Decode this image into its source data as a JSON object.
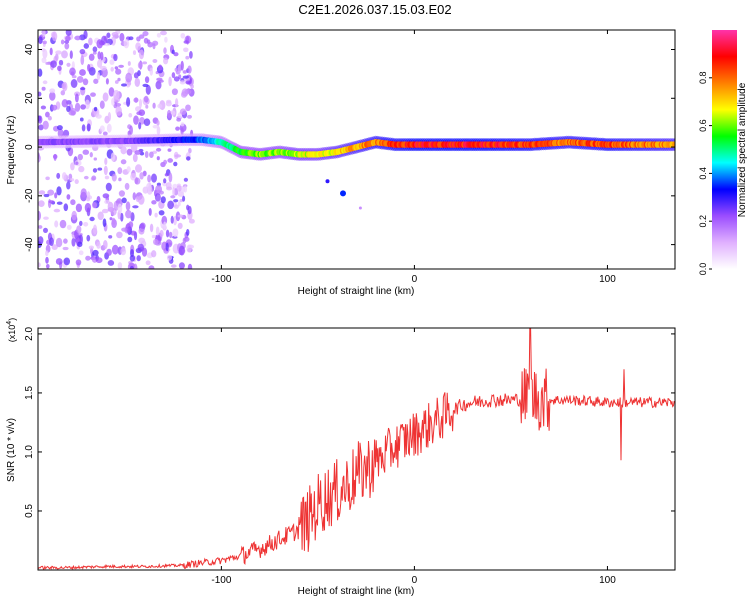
{
  "title": "C2E1.2026.037.15.03.E02",
  "chart_data": [
    {
      "type": "heatmap",
      "xlabel": "Height of straight line (km)",
      "ylabel": "Frequency (Hz)",
      "xlim": [
        -195,
        135
      ],
      "ylim": [
        -50,
        48
      ],
      "xticks": [
        -100,
        0,
        100
      ],
      "xtick_labels": [
        "-100",
        "0",
        "100"
      ],
      "yticks": [
        -40,
        -20,
        0,
        20,
        40
      ],
      "ytick_labels": [
        "-40",
        "-20",
        "0",
        "20",
        "40"
      ],
      "colorbar": {
        "label": "Normalized spectral amplitude",
        "range": [
          0,
          1
        ],
        "ticks": [
          0.0,
          0.2,
          0.4,
          0.6,
          0.8
        ],
        "tick_labels": [
          "0.0",
          "0.2",
          "0.4",
          "0.6",
          "0.8"
        ],
        "colors": [
          "#ffffff",
          "#e0b0ff",
          "#9b4dff",
          "#0000ff",
          "#00ffff",
          "#00ff00",
          "#ffff00",
          "#ff7f00",
          "#ff0000",
          "#ff33aa"
        ]
      },
      "ridge": {
        "x": [
          -195,
          -150,
          -120,
          -110,
          -100,
          -90,
          -80,
          -70,
          -60,
          -50,
          -40,
          -30,
          -20,
          -10,
          0,
          10,
          20,
          40,
          60,
          80,
          100,
          120,
          135
        ],
        "y": [
          2,
          2.5,
          3,
          3,
          2,
          -2,
          -3,
          -2,
          -3,
          -3,
          -2,
          0,
          2,
          1,
          1,
          1,
          1,
          1,
          1,
          2,
          1,
          1,
          1
        ],
        "amplitude": [
          0.25,
          0.25,
          0.35,
          0.4,
          0.5,
          0.6,
          0.65,
          0.65,
          0.7,
          0.7,
          0.75,
          0.8,
          0.85,
          0.9,
          0.95,
          0.95,
          0.95,
          0.95,
          0.9,
          0.85,
          0.9,
          0.85,
          0.8
        ]
      },
      "noise_region_x": [
        -195,
        -115
      ]
    },
    {
      "type": "line",
      "xlabel": "Height of straight line (km)",
      "ylabel": "SNR (10 * v/v)",
      "multiplier": "(x10",
      "multiplier_exp": "4",
      "multiplier_close": ")",
      "xlim": [
        -195,
        135
      ],
      "ylim": [
        0,
        2.05
      ],
      "xticks": [
        -100,
        0,
        100
      ],
      "xtick_labels": [
        "-100",
        "0",
        "100"
      ],
      "yticks": [
        0.5,
        1.0,
        1.5,
        2.0
      ],
      "ytick_labels": [
        "0.5",
        "1.0",
        "1.5",
        "2.0"
      ],
      "color": "#ee3333",
      "series": [
        {
          "name": "SNR",
          "x": [
            -195,
            -180,
            -160,
            -140,
            -120,
            -110,
            -100,
            -90,
            -80,
            -70,
            -60,
            -55,
            -50,
            -45,
            -40,
            -35,
            -30,
            -25,
            -20,
            -15,
            -10,
            -5,
            0,
            5,
            10,
            15,
            20,
            25,
            30,
            35,
            40,
            45,
            50,
            55,
            58,
            60,
            62,
            65,
            70,
            75,
            80,
            90,
            100,
            105,
            110,
            120,
            135
          ],
          "y": [
            0.02,
            0.02,
            0.03,
            0.03,
            0.04,
            0.06,
            0.08,
            0.12,
            0.18,
            0.26,
            0.34,
            0.42,
            0.55,
            0.62,
            0.66,
            0.72,
            0.8,
            0.86,
            0.92,
            0.98,
            1.05,
            1.1,
            1.15,
            1.2,
            1.25,
            1.3,
            1.36,
            1.4,
            1.42,
            1.43,
            1.44,
            1.44,
            1.44,
            1.45,
            1.46,
            1.47,
            1.46,
            1.45,
            1.44,
            1.44,
            1.44,
            1.43,
            1.42,
            1.42,
            1.42,
            1.42,
            1.42
          ]
        }
      ]
    }
  ]
}
